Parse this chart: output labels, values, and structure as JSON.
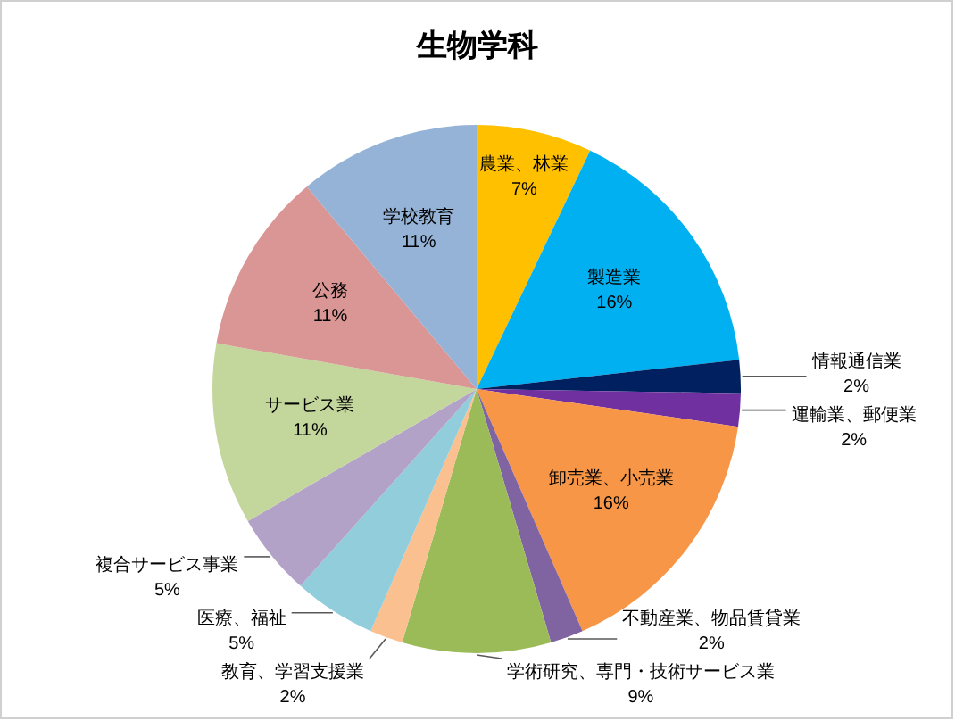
{
  "chart_data": {
    "type": "pie",
    "title": "生物学科",
    "categories": [
      "農業、林業",
      "製造業",
      "情報通信業",
      "運輸業、郵便業",
      "卸売業、小売業",
      "不動産業、物品賃貸業",
      "学術研究、専門・技術サービス業",
      "教育、学習支援業",
      "医療、福祉",
      "複合サービス事業",
      "サービス業",
      "公務",
      "学校教育"
    ],
    "values": [
      7,
      16,
      2,
      2,
      16,
      2,
      9,
      2,
      5,
      5,
      11,
      11,
      11
    ],
    "value_labels": [
      "7%",
      "16%",
      "2%",
      "2%",
      "16%",
      "2%",
      "9%",
      "2%",
      "5%",
      "5%",
      "11%",
      "11%",
      "11%"
    ],
    "colors": [
      "#ffc000",
      "#00b0f0",
      "#002060",
      "#7030a0",
      "#f79646",
      "#8064a2",
      "#9bbb59",
      "#fac090",
      "#92cddc",
      "#b3a2c7",
      "#c3d69b",
      "#d99694",
      "#95b3d7"
    ]
  }
}
